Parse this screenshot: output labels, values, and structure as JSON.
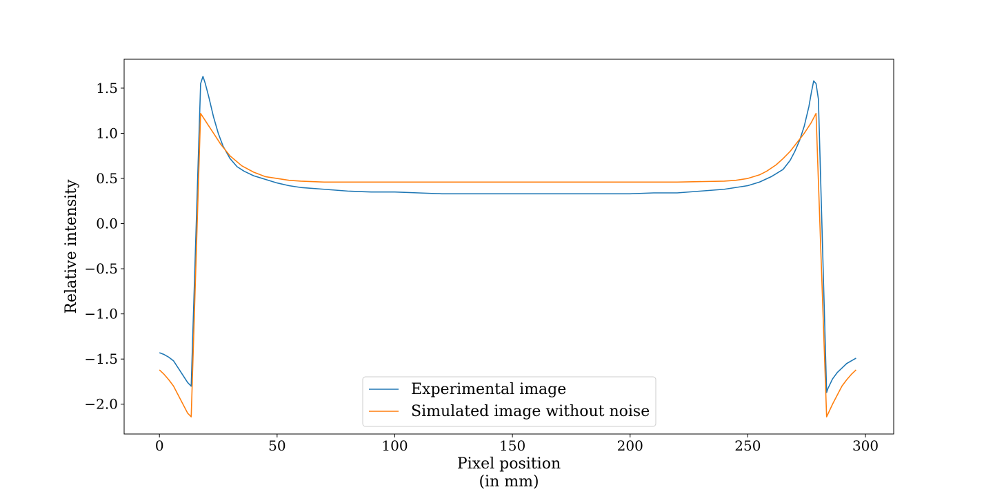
{
  "chart_data": {
    "type": "line",
    "title": "",
    "xlabel_line1": "Pixel position",
    "xlabel_line2": "(in mm)",
    "ylabel": "Relative intensity",
    "xlim": [
      -15,
      312
    ],
    "ylim": [
      -2.33,
      1.82
    ],
    "xticks": [
      {
        "value": 0,
        "label": "0"
      },
      {
        "value": 50,
        "label": "50"
      },
      {
        "value": 100,
        "label": "100"
      },
      {
        "value": 150,
        "label": "150"
      },
      {
        "value": 200,
        "label": "200"
      },
      {
        "value": 250,
        "label": "250"
      },
      {
        "value": 300,
        "label": "300"
      }
    ],
    "yticks": [
      {
        "value": 1.5,
        "label": "1.5"
      },
      {
        "value": 1.0,
        "label": "1.0"
      },
      {
        "value": 0.5,
        "label": "0.5"
      },
      {
        "value": 0.0,
        "label": "0.0"
      },
      {
        "value": -0.5,
        "label": "−0.5"
      },
      {
        "value": -1.0,
        "label": "−1.0"
      },
      {
        "value": -1.5,
        "label": "−1.5"
      },
      {
        "value": -2.0,
        "label": "−2.0"
      }
    ],
    "grid": false,
    "legend_position": "bottom-center",
    "series": [
      {
        "name": "Experimental image",
        "color": "#1f77b4",
        "x": [
          0,
          2,
          4,
          6,
          8,
          10,
          12,
          13.5,
          17.5,
          18.5,
          19.5,
          21,
          23,
          25,
          27,
          30,
          33,
          36,
          40,
          45,
          50,
          55,
          60,
          70,
          80,
          90,
          100,
          110,
          120,
          130,
          140,
          150,
          160,
          170,
          180,
          190,
          200,
          210,
          220,
          230,
          240,
          250,
          255,
          260,
          265,
          268,
          270,
          272,
          274,
          276,
          277,
          278,
          279,
          280,
          283.5,
          284,
          286,
          288,
          290,
          292,
          294,
          296
        ],
        "y": [
          -1.43,
          -1.45,
          -1.48,
          -1.52,
          -1.6,
          -1.68,
          -1.76,
          -1.8,
          1.55,
          1.63,
          1.55,
          1.4,
          1.18,
          1.0,
          0.86,
          0.72,
          0.63,
          0.58,
          0.53,
          0.49,
          0.45,
          0.42,
          0.4,
          0.38,
          0.36,
          0.35,
          0.35,
          0.34,
          0.33,
          0.33,
          0.33,
          0.33,
          0.33,
          0.33,
          0.33,
          0.33,
          0.33,
          0.34,
          0.34,
          0.36,
          0.38,
          0.42,
          0.46,
          0.52,
          0.6,
          0.7,
          0.8,
          0.92,
          1.08,
          1.3,
          1.45,
          1.58,
          1.55,
          1.38,
          -1.87,
          -1.83,
          -1.72,
          -1.65,
          -1.6,
          -1.55,
          -1.52,
          -1.49
        ]
      },
      {
        "name": "Simulated image without noise",
        "color": "#ff7f0e",
        "x": [
          0,
          2,
          4,
          6,
          8,
          10,
          12,
          13.5,
          17.5,
          20,
          23,
          26,
          30,
          35,
          40,
          45,
          50,
          55,
          60,
          70,
          80,
          100,
          120,
          140,
          160,
          180,
          200,
          220,
          240,
          245,
          250,
          255,
          258,
          262,
          265,
          268,
          271,
          274,
          277,
          279,
          283.5,
          286,
          288,
          290,
          292,
          294,
          296
        ],
        "y": [
          -1.62,
          -1.67,
          -1.73,
          -1.8,
          -1.9,
          -2.0,
          -2.1,
          -2.14,
          1.22,
          1.12,
          1.0,
          0.88,
          0.75,
          0.64,
          0.57,
          0.52,
          0.5,
          0.48,
          0.47,
          0.46,
          0.46,
          0.46,
          0.46,
          0.46,
          0.46,
          0.46,
          0.46,
          0.46,
          0.47,
          0.48,
          0.5,
          0.54,
          0.58,
          0.65,
          0.72,
          0.8,
          0.9,
          1.0,
          1.12,
          1.22,
          -2.14,
          -2.0,
          -1.9,
          -1.8,
          -1.73,
          -1.67,
          -1.62
        ]
      }
    ]
  }
}
